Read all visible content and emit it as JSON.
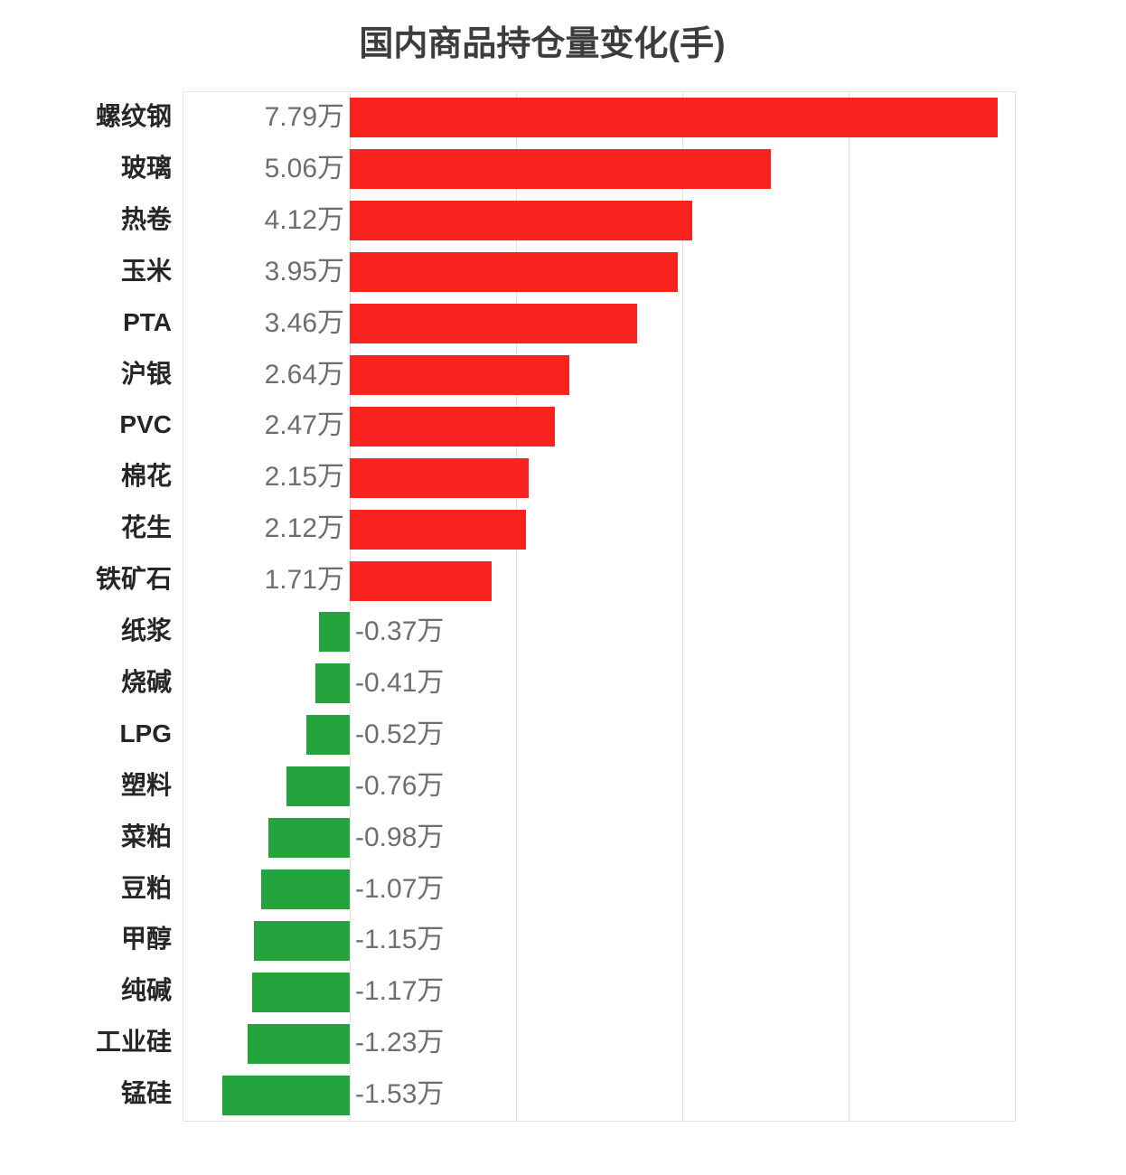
{
  "title": "国内商品持仓量变化(手)",
  "colors": {
    "positive_bar": "#f9241f",
    "negative_bar": "#23a43c",
    "gridline": "#e4e4e4",
    "title_text": "#3d3d3d",
    "category_text": "#262626",
    "value_text": "#6e6e6e",
    "background": "#ffffff"
  },
  "chart_data": {
    "type": "bar",
    "orientation": "horizontal",
    "title": "国内商品持仓量变化(手)",
    "value_unit": "万",
    "xlim": [
      -2,
      8
    ],
    "grid_step": 2,
    "grid": "vertical-only, no tick labels",
    "legend": "none",
    "bar_color_rule": "positive=red, negative=green",
    "categories": [
      "螺纹钢",
      "玻璃",
      "热卷",
      "玉米",
      "PTA",
      "沪银",
      "PVC",
      "棉花",
      "花生",
      "铁矿石",
      "纸浆",
      "烧碱",
      "LPG",
      "塑料",
      "菜粕",
      "豆粕",
      "甲醇",
      "纯碱",
      "工业硅",
      "锰硅"
    ],
    "values": [
      7.79,
      5.06,
      4.12,
      3.95,
      3.46,
      2.64,
      2.47,
      2.15,
      2.12,
      1.71,
      -0.37,
      -0.41,
      -0.52,
      -0.76,
      -0.98,
      -1.07,
      -1.15,
      -1.17,
      -1.23,
      -1.53
    ],
    "value_labels": [
      "7.79万",
      "5.06万",
      "4.12万",
      "3.95万",
      "3.46万",
      "2.64万",
      "2.47万",
      "2.15万",
      "2.12万",
      "1.71万",
      "-0.37万",
      "-0.41万",
      "-0.52万",
      "-0.76万",
      "-0.98万",
      "-1.07万",
      "-1.15万",
      "-1.17万",
      "-1.23万",
      "-1.53万"
    ]
  }
}
